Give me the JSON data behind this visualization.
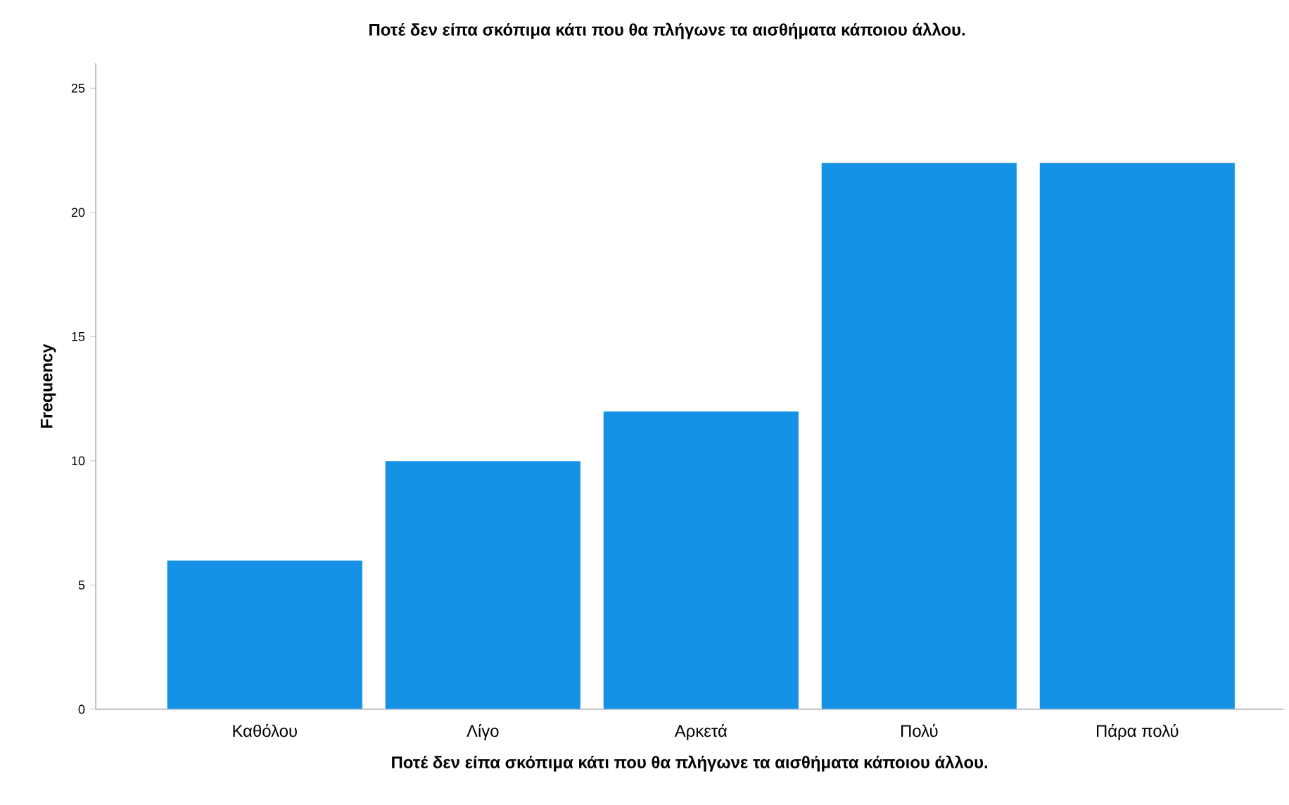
{
  "chart_data": {
    "type": "bar",
    "title": "Ποτέ δεν είπα σκόπιμα κάτι που θα πλήγωνε τα αισθήματα κάποιου άλλου.",
    "xlabel": "Ποτέ δεν είπα σκόπιμα κάτι που θα πλήγωνε τα αισθήματα κάποιου άλλου.",
    "ylabel": "Frequency",
    "categories": [
      "Καθόλου",
      "Λίγο",
      "Αρκετά",
      "Πολύ",
      "Πάρα πολύ"
    ],
    "values": [
      6,
      10,
      12,
      22,
      22
    ],
    "color": "#1591e6",
    "ylim": [
      0,
      26
    ],
    "yticks": [
      0,
      5,
      10,
      15,
      20,
      25
    ],
    "grid": false
  }
}
